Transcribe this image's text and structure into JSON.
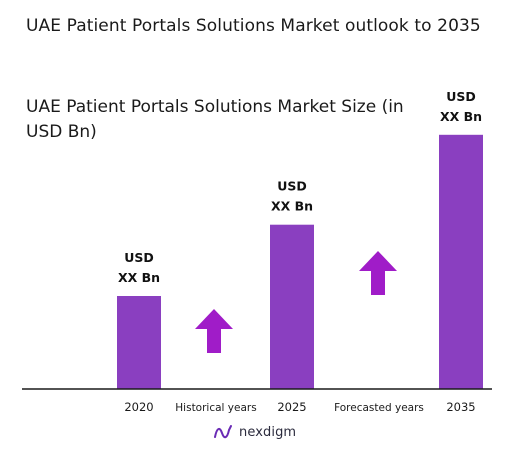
{
  "title": "UAE Patient Portals Solutions Market outlook to 2035",
  "chart_data": {
    "type": "bar",
    "title": "UAE Patient Portals Solutions Market Size (in USD Bn)",
    "categories": [
      "2020",
      "2025",
      "2035"
    ],
    "values": [
      30,
      53,
      82
    ],
    "data_labels": [
      [
        "USD",
        "XX Bn"
      ],
      [
        "USD",
        "XX Bn"
      ],
      [
        "USD",
        "XX Bn"
      ]
    ],
    "period_labels": [
      "Historical years",
      "Forecasted years"
    ],
    "ylim": [
      0,
      100
    ],
    "grid": false,
    "bar_color": "#8A3FC0",
    "arrow_color": "#A01CC8"
  },
  "brand": {
    "name": "nexdigm",
    "icon": "nexdigm-logo-icon"
  }
}
